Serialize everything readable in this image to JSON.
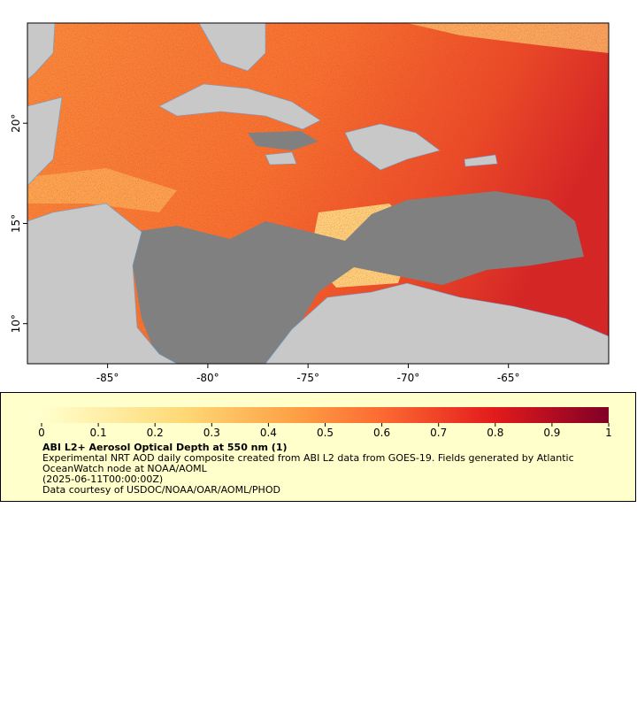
{
  "map": {
    "xlim": [
      -89,
      -60
    ],
    "ylim": [
      8,
      25
    ],
    "lon_ticks": [
      {
        "value": -85,
        "label": "-85°"
      },
      {
        "value": -80,
        "label": "-80°"
      },
      {
        "value": -75,
        "label": "-75°"
      },
      {
        "value": -70,
        "label": "-70°"
      },
      {
        "value": -65,
        "label": "-65°"
      }
    ],
    "lat_ticks": [
      {
        "value": 10,
        "label": "10°"
      },
      {
        "value": 15,
        "label": "15°"
      },
      {
        "value": 20,
        "label": "20°"
      }
    ]
  },
  "colorbar": {
    "lim": [
      0,
      1
    ],
    "ticks": [
      0,
      0.1,
      0.2,
      0.3,
      0.4,
      0.5,
      0.6,
      0.7,
      0.8,
      0.9,
      1
    ]
  },
  "caption": {
    "title": "ABI L2+ Aerosol Optical Depth at 550 nm (1)",
    "description": "Experimental NRT AOD daily composite created from ABI L2 data from GOES-19. Fields generated by Atlantic OceanWatch node at NOAA/AOML",
    "time": "(2025-06-11T00:00:00Z)",
    "credit": "Data courtesy of USDOC/NOAA/OAR/AOML/PHOD"
  }
}
